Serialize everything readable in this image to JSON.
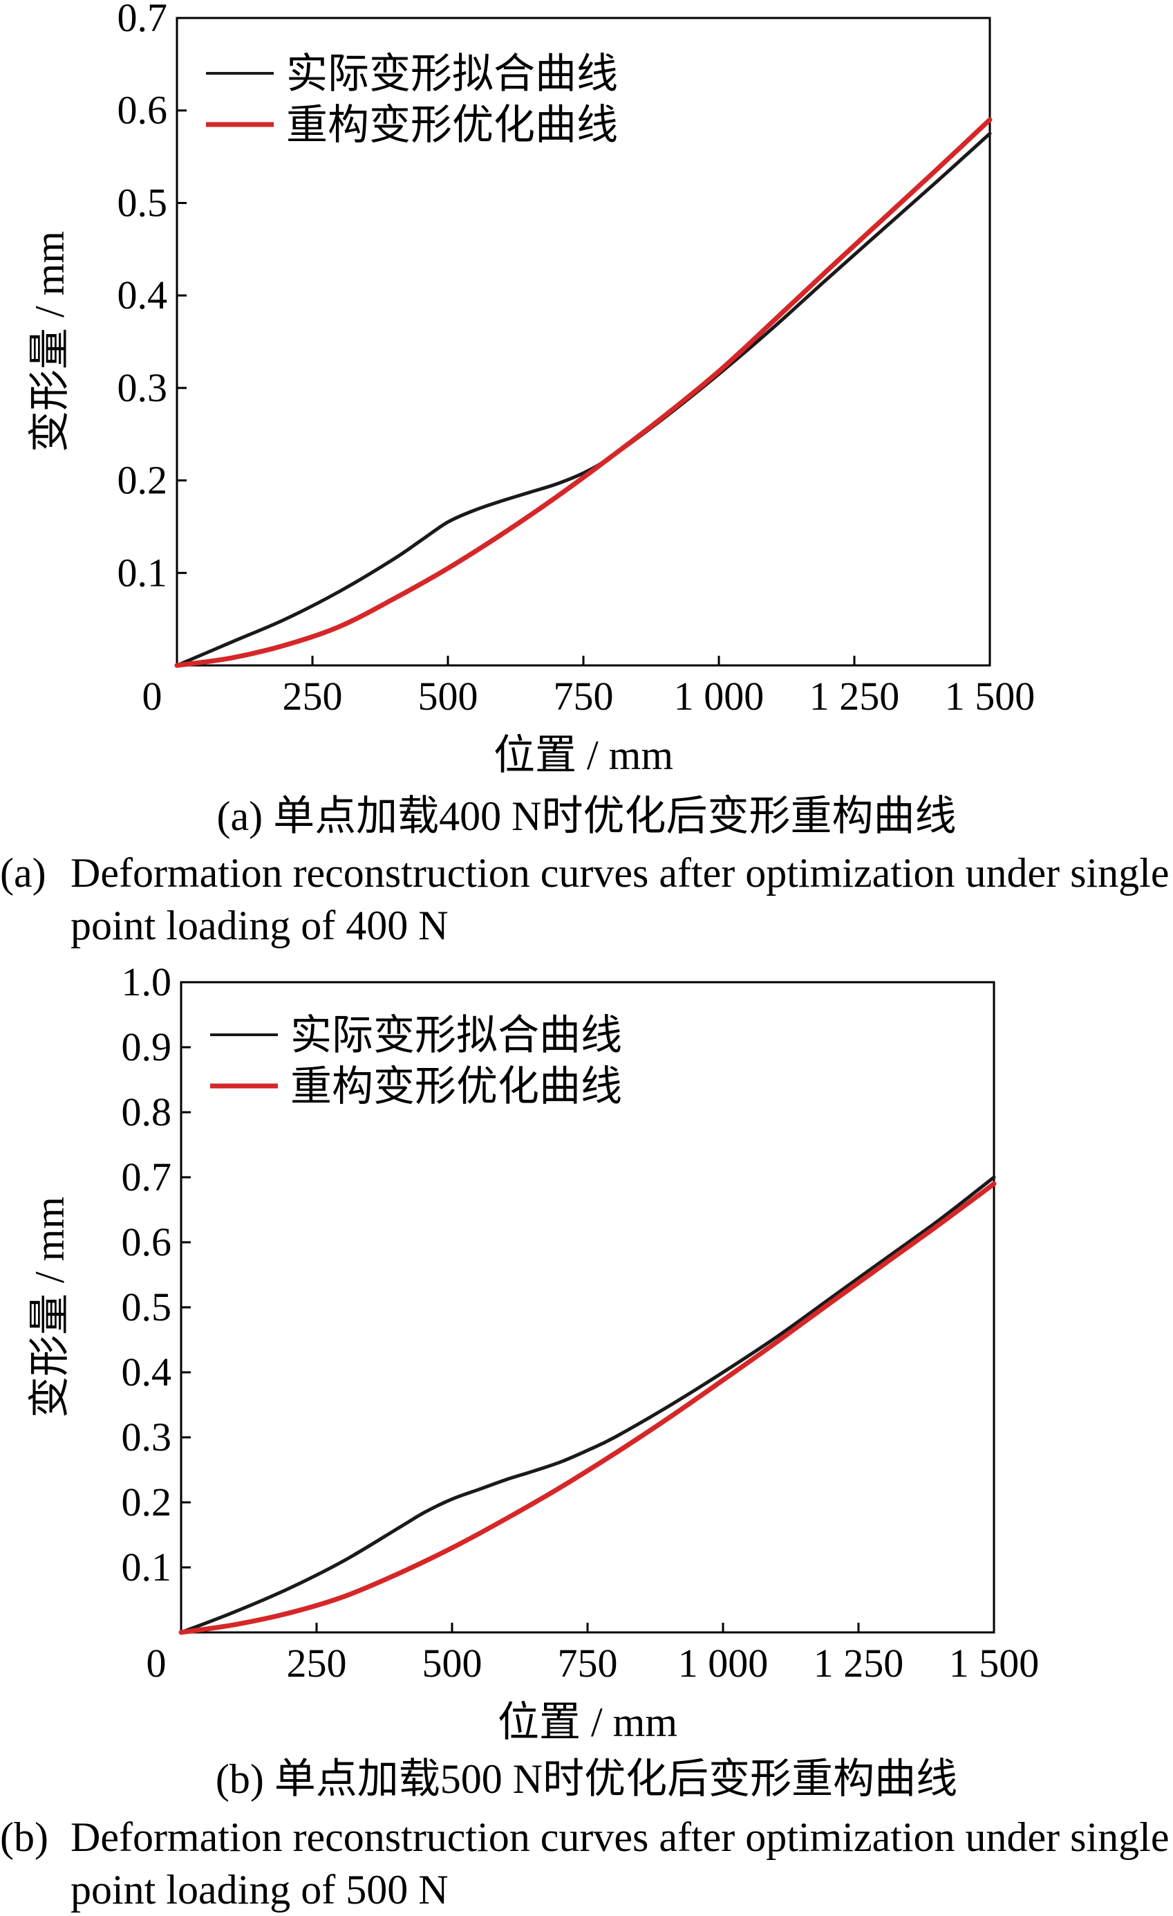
{
  "chart_data": [
    {
      "type": "line",
      "xlabel": "位置 / mm",
      "ylabel": "变形量 / mm",
      "xlim": [
        0,
        1500
      ],
      "ylim": [
        0,
        0.7
      ],
      "xticks": [
        0,
        250,
        500,
        750,
        1000,
        1250,
        1500
      ],
      "xtick_labels": [
        "0",
        "250",
        "500",
        "750",
        "1 000",
        "1 250",
        "1 500"
      ],
      "yticks": [
        0.1,
        0.2,
        0.3,
        0.4,
        0.5,
        0.6,
        0.7
      ],
      "ytick_labels": [
        "0.1",
        "0.2",
        "0.3",
        "0.4",
        "0.5",
        "0.6",
        "0.7"
      ],
      "legend_position": "top-left",
      "series": [
        {
          "name": "实际变形拟合曲线",
          "color": "#1a1a1a",
          "x": [
            0,
            100,
            200,
            300,
            400,
            450,
            500,
            550,
            600,
            650,
            700,
            750,
            800,
            900,
            1000,
            1100,
            1200,
            1300,
            1400,
            1500
          ],
          "y": [
            0.0,
            0.025,
            0.05,
            0.08,
            0.115,
            0.135,
            0.155,
            0.168,
            0.178,
            0.187,
            0.196,
            0.208,
            0.225,
            0.268,
            0.315,
            0.365,
            0.418,
            0.47,
            0.522,
            0.575
          ]
        },
        {
          "name": "重构变形优化曲线",
          "color": "#d62728",
          "x": [
            0,
            100,
            200,
            300,
            400,
            500,
            600,
            700,
            800,
            900,
            1000,
            1100,
            1200,
            1300,
            1400,
            1500
          ],
          "y": [
            0.0,
            0.008,
            0.022,
            0.042,
            0.072,
            0.105,
            0.142,
            0.182,
            0.225,
            0.27,
            0.318,
            0.372,
            0.427,
            0.481,
            0.535,
            0.59
          ]
        }
      ],
      "caption_cn": "(a)  单点加载400 N时优化后变形重构曲线",
      "caption_en_tag": "(a)",
      "caption_en": "Deformation reconstruction curves after optimization under single point loading of 400 N"
    },
    {
      "type": "line",
      "xlabel": "位置 / mm",
      "ylabel": "变形量 / mm",
      "xlim": [
        0,
        1500
      ],
      "ylim": [
        0,
        1.0
      ],
      "xticks": [
        0,
        250,
        500,
        750,
        1000,
        1250,
        1500
      ],
      "xtick_labels": [
        "0",
        "250",
        "500",
        "750",
        "1 000",
        "1 250",
        "1 500"
      ],
      "yticks": [
        0.1,
        0.2,
        0.3,
        0.4,
        0.5,
        0.6,
        0.7,
        0.8,
        0.9,
        1.0
      ],
      "ytick_labels": [
        "0.1",
        "0.2",
        "0.3",
        "0.4",
        "0.5",
        "0.6",
        "0.7",
        "0.8",
        "0.9",
        "1.0"
      ],
      "legend_position": "top-left",
      "series": [
        {
          "name": "实际变形拟合曲线",
          "color": "#1a1a1a",
          "x": [
            0,
            100,
            200,
            300,
            400,
            450,
            500,
            550,
            600,
            650,
            700,
            750,
            800,
            900,
            1000,
            1100,
            1200,
            1300,
            1400,
            1500
          ],
          "y": [
            0.0,
            0.032,
            0.068,
            0.11,
            0.16,
            0.185,
            0.205,
            0.22,
            0.235,
            0.248,
            0.262,
            0.28,
            0.3,
            0.348,
            0.4,
            0.455,
            0.515,
            0.575,
            0.635,
            0.7
          ]
        },
        {
          "name": "重构变形优化曲线",
          "color": "#d62728",
          "x": [
            0,
            100,
            200,
            300,
            400,
            500,
            600,
            700,
            800,
            900,
            1000,
            1100,
            1200,
            1300,
            1400,
            1500
          ],
          "y": [
            0.0,
            0.012,
            0.03,
            0.055,
            0.09,
            0.13,
            0.175,
            0.223,
            0.275,
            0.33,
            0.388,
            0.447,
            0.508,
            0.568,
            0.628,
            0.69
          ]
        }
      ],
      "caption_cn": "(b)  单点加载500 N时优化后变形重构曲线",
      "caption_en_tag": "(b)",
      "caption_en": "Deformation reconstruction curves after optimization under single point loading of 500 N"
    }
  ]
}
